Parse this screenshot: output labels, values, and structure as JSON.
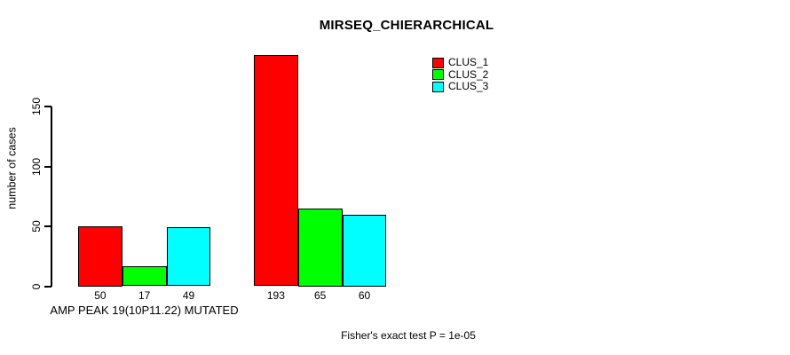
{
  "figure": {
    "background_color": "#ffffff",
    "text_color": "#000000"
  },
  "chart_data": {
    "type": "bar",
    "title": "MIRSEQ_CHIERARCHICAL",
    "ylabel": "number of cases",
    "xlabel": "AMP PEAK 19(10P11.22) MUTATED",
    "footnote": "Fisher's exact test P = 1e-05",
    "yticks": [
      0,
      50,
      100,
      150
    ],
    "ylim": [
      0,
      200
    ],
    "grid": false,
    "bar_borders": true,
    "value_labels_shown": true,
    "legend_position": "top-right",
    "categories": [
      "AMP PEAK 19(10P11.22) MUTATED",
      ""
    ],
    "series": [
      {
        "name": "CLUS_1",
        "color": "#ff0000",
        "values": [
          50,
          193
        ]
      },
      {
        "name": "CLUS_2",
        "color": "#00ff00",
        "values": [
          17,
          65
        ]
      },
      {
        "name": "CLUS_3",
        "color": "#00ffff",
        "values": [
          49,
          60
        ]
      }
    ]
  }
}
